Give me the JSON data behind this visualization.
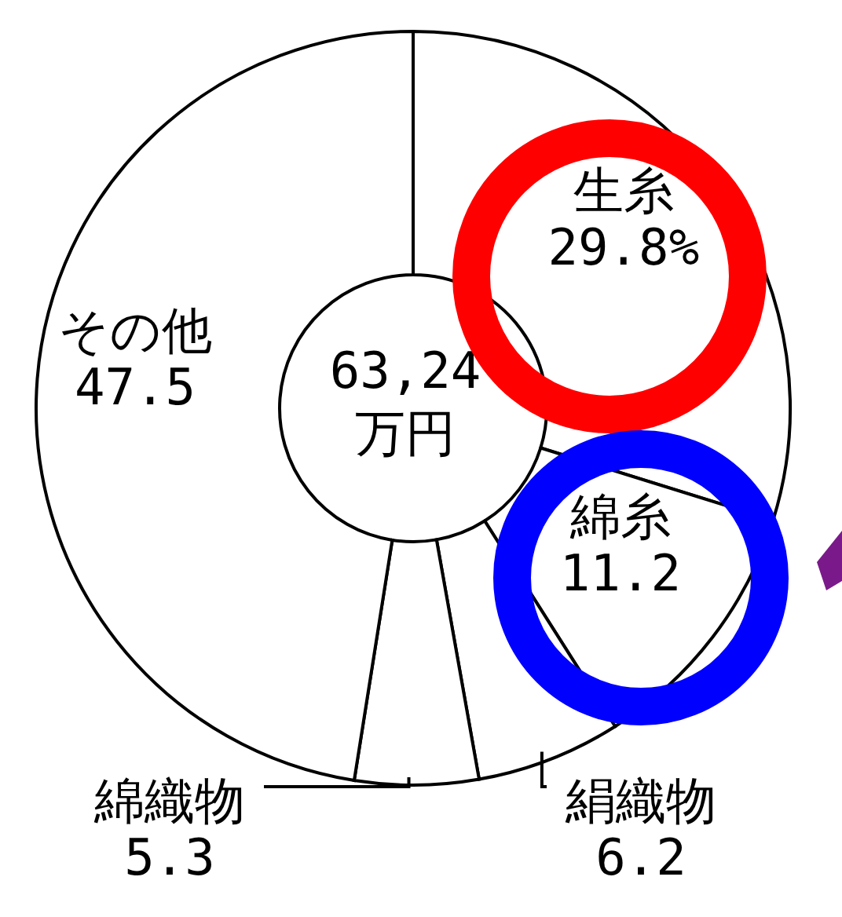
{
  "chart_data": {
    "type": "donut",
    "categories": [
      "生糸",
      "綿糸",
      "絹織物",
      "綿織物",
      "その他"
    ],
    "values": [
      29.8,
      11.2,
      6.2,
      5.3,
      47.5
    ],
    "colors": [
      "#ffffff",
      "#ffffff",
      "#ffffff",
      "#ffffff",
      "#ffffff"
    ],
    "value_labels": [
      "29.8%",
      "11.2",
      "6.2",
      "5.3",
      "47.5"
    ],
    "annotations": [
      "63,24",
      "万円"
    ]
  }
}
